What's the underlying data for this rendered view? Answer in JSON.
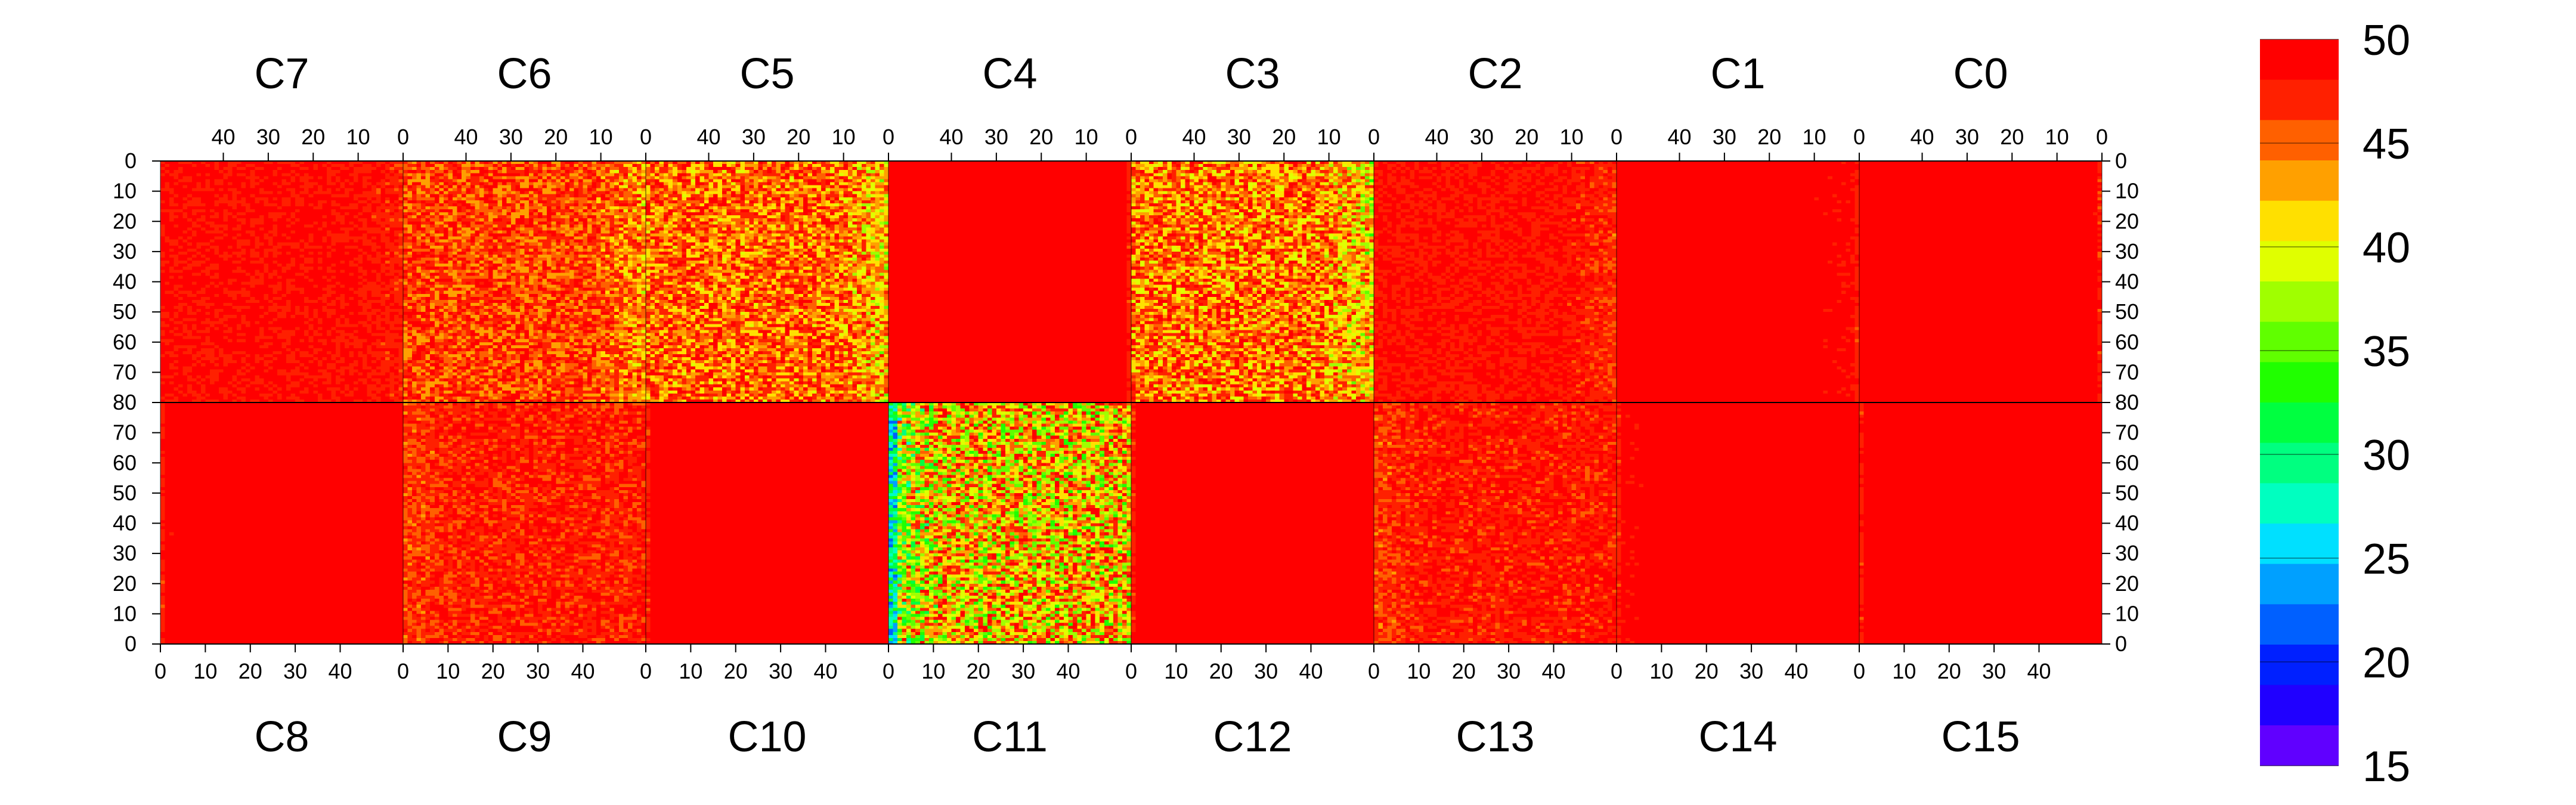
{
  "chart_data": {
    "type": "heatmap",
    "title": "",
    "description_note": "",
    "top_row": {
      "chips": [
        "C7",
        "C6",
        "C5",
        "C4",
        "C3",
        "C2",
        "C1",
        "C0"
      ],
      "x_ticks": [
        "40",
        "30",
        "20",
        "10",
        "0"
      ],
      "x_range": [
        0,
        53
      ],
      "x_reversed": true,
      "y_ticks": [
        "0",
        "10",
        "20",
        "30",
        "40",
        "50",
        "60",
        "70",
        "80"
      ],
      "y_range": [
        0,
        80
      ],
      "y_direction": "down"
    },
    "bottom_row": {
      "chips": [
        "C8",
        "C9",
        "C10",
        "C11",
        "C12",
        "C13",
        "C14",
        "C15"
      ],
      "x_ticks": [
        "0",
        "10",
        "20",
        "30",
        "40"
      ],
      "x_range": [
        0,
        53
      ],
      "x_reversed": false,
      "y_ticks": [
        "70",
        "60",
        "50",
        "40",
        "30",
        "20",
        "10",
        "0"
      ],
      "y_range": [
        0,
        80
      ],
      "y_direction": "up"
    },
    "chip_mean_levels": {
      "C7": 48.6,
      "C6": 46.5,
      "C5": 45.5,
      "C4": 49.6,
      "C3": 45.0,
      "C2": 48.3,
      "C1": 49.2,
      "C0": 49.4,
      "C8": 49.4,
      "C9": 47.8,
      "C10": 49.6,
      "C11": 42.5,
      "C12": 49.6,
      "C13": 48.0,
      "C14": 49.3,
      "C15": 49.4
    },
    "colorbar": {
      "min": 15,
      "max": 50,
      "ticks": [
        "50",
        "45",
        "40",
        "35",
        "30",
        "25",
        "20",
        "15"
      ],
      "colors": [
        "#ff0000",
        "#ff2000",
        "#ff6000",
        "#ffa000",
        "#ffe000",
        "#e0ff00",
        "#a0ff00",
        "#60ff00",
        "#20ff00",
        "#00ff40",
        "#00ff80",
        "#00ffc0",
        "#00e0ff",
        "#00a0ff",
        "#0060ff",
        "#0020ff",
        "#2000ff",
        "#6000ff"
      ]
    }
  }
}
